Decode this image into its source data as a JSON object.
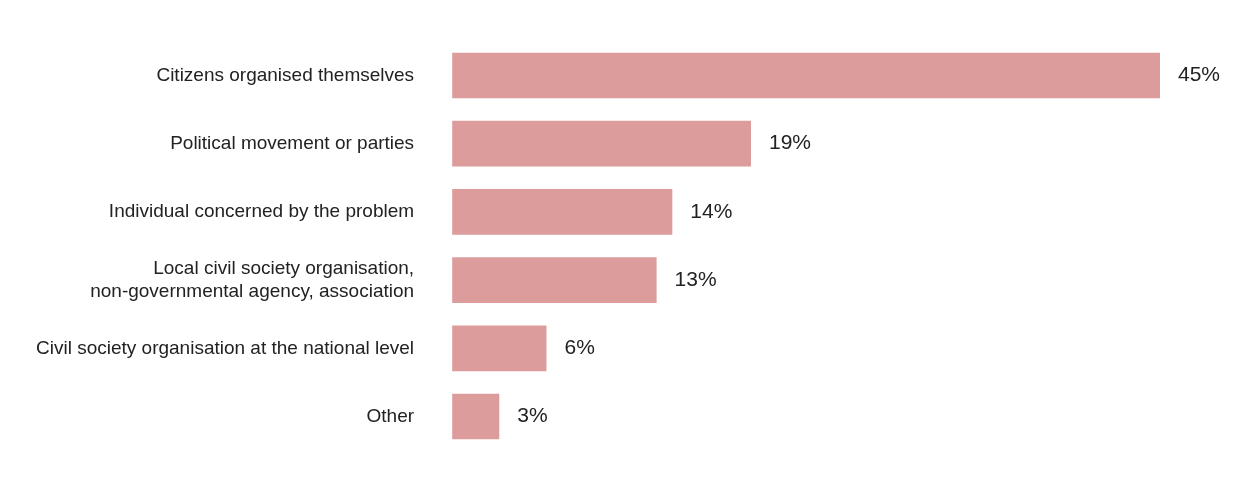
{
  "chart_data": {
    "type": "bar",
    "orientation": "horizontal",
    "categories": [
      "Citizens organised themselves",
      "Political movement or parties",
      "Individual concerned by the problem",
      "Local civil society organisation,\nnon-governmental agency, association",
      "Civil society organisation at the national level",
      "Other"
    ],
    "values": [
      45,
      19,
      14,
      13,
      6,
      3
    ],
    "value_labels": [
      "45%",
      "19%",
      "14%",
      "13%",
      "6%",
      "3%"
    ],
    "color": "#dd9c9c",
    "tick_labels": "y",
    "legend": false
  }
}
